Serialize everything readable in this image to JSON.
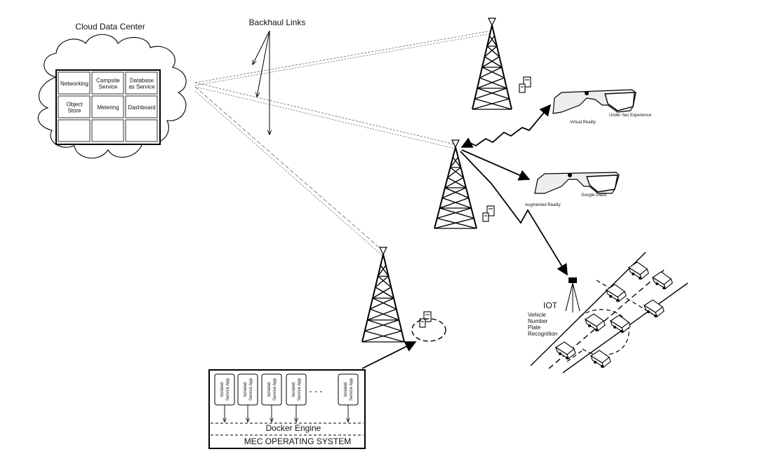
{
  "cloud": {
    "title": "Cloud Data Center",
    "services": [
      "Networking",
      "Campsite Service",
      "Database as Service",
      "Object Store",
      "Metering",
      "Dashboard",
      "",
      "",
      ""
    ]
  },
  "backhaul": {
    "label": "Backhaul Links"
  },
  "vr": {
    "label": "Virtual Reality",
    "caption": "Under Sec Experience"
  },
  "ar": {
    "label": "Augmented Reality",
    "caption": "Google Glass"
  },
  "iot": {
    "title": "IOT",
    "subtitle": "Vehicle Number Plate Recognition"
  },
  "mec": {
    "containers": [
      "Isolated Service App",
      "Isolated Service App",
      "Isolated Service App",
      "Isolated Service App",
      "Isolated Service App"
    ],
    "ellipsis": "- - -",
    "docker": "Docker Engine",
    "os": "MEC OPERATING SYSTEM"
  }
}
